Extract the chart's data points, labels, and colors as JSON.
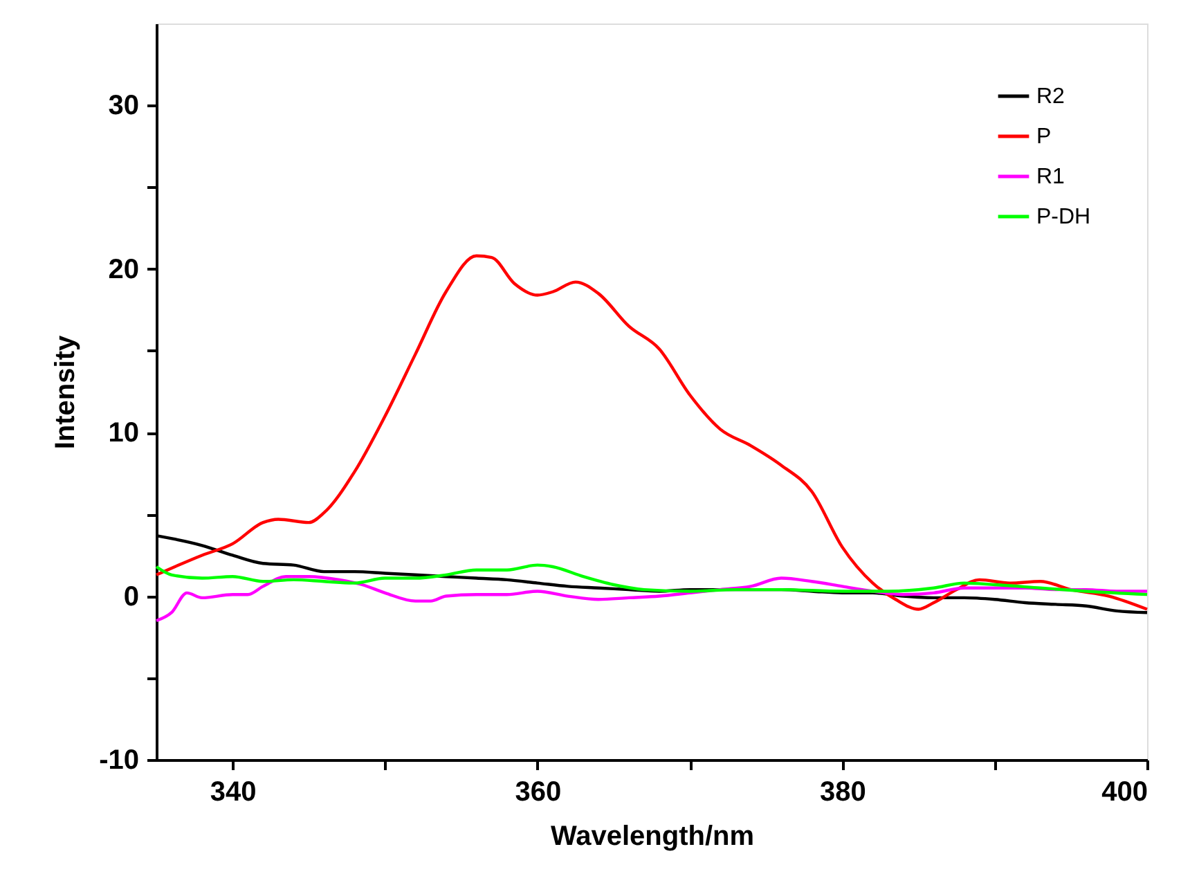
{
  "chart_data": {
    "type": "line",
    "xlabel": "Wavelength/nm",
    "ylabel": "Intensity",
    "xlim": [
      335,
      400
    ],
    "ylim": [
      -10,
      35
    ],
    "xticks": [
      340,
      {
        "value": 350,
        "label": null
      },
      360,
      {
        "value": 370,
        "label": null
      },
      380,
      {
        "value": 390,
        "label": null
      },
      400
    ],
    "yticks": [
      -10,
      {
        "value": -5,
        "label": null
      },
      0,
      {
        "value": 5,
        "label": null
      },
      10,
      {
        "value": 15,
        "label": null
      },
      20,
      {
        "value": 25,
        "label": null
      },
      30
    ],
    "grid": false,
    "legend": "top right",
    "line_style": "solid",
    "marker": "none",
    "series": [
      {
        "name": "R2",
        "color": "#000000",
        "x": [
          335,
          338,
          340,
          342,
          344,
          346,
          348,
          350,
          352,
          354,
          356,
          358,
          360,
          362,
          364,
          366,
          368,
          370,
          372,
          374,
          376,
          378,
          380,
          382,
          384,
          386,
          388,
          390,
          392,
          394,
          396,
          398,
          400
        ],
        "values": [
          3.7,
          3.1,
          2.5,
          2.0,
          1.9,
          1.5,
          1.5,
          1.4,
          1.3,
          1.2,
          1.1,
          1.0,
          0.8,
          0.6,
          0.5,
          0.4,
          0.3,
          0.4,
          0.4,
          0.4,
          0.4,
          0.3,
          0.2,
          0.2,
          0.0,
          -0.1,
          -0.1,
          -0.2,
          -0.4,
          -0.5,
          -0.6,
          -0.9,
          -1.0
        ]
      },
      {
        "name": "P",
        "color": "#ff0000",
        "x": [
          335,
          338,
          340,
          342,
          343,
          345,
          346,
          348,
          350,
          352,
          354,
          356,
          357,
          358.5,
          360,
          361,
          362.5,
          364,
          366,
          368,
          370,
          372,
          374,
          376,
          378,
          380,
          382,
          383.5,
          385,
          386,
          387.5,
          389,
          391,
          393,
          395,
          397.5,
          400
        ],
        "values": [
          1.3,
          2.5,
          3.2,
          4.5,
          4.7,
          4.5,
          5.1,
          7.6,
          11,
          14.8,
          18.6,
          20.8,
          20.7,
          19.1,
          18.4,
          18.6,
          19.2,
          18.5,
          16.5,
          15.1,
          12.3,
          10.2,
          9.2,
          8.0,
          6.4,
          3.0,
          0.8,
          -0.2,
          -0.8,
          -0.4,
          0.4,
          1.0,
          0.8,
          0.9,
          0.4,
          0.0,
          -0.8
        ]
      },
      {
        "name": "R1",
        "color": "#ff00ff",
        "x": [
          335,
          336,
          337,
          338,
          340,
          341,
          342,
          343.5,
          345,
          347,
          348.5,
          350,
          352,
          353,
          354,
          356,
          358,
          360,
          362,
          364,
          366,
          368,
          370,
          372,
          374,
          376,
          378,
          380,
          382,
          384,
          386,
          388,
          390,
          392,
          394,
          396,
          398,
          400
        ],
        "values": [
          -1.5,
          -1.0,
          0.2,
          -0.1,
          0.1,
          0.1,
          0.6,
          1.2,
          1.2,
          1.0,
          0.7,
          0.2,
          -0.3,
          -0.3,
          0.0,
          0.1,
          0.1,
          0.3,
          0.0,
          -0.2,
          -0.1,
          0.0,
          0.2,
          0.4,
          0.6,
          1.1,
          0.9,
          0.6,
          0.3,
          0.1,
          0.2,
          0.5,
          0.5,
          0.5,
          0.4,
          0.4,
          0.3,
          0.3
        ]
      },
      {
        "name": "P-DH",
        "color": "#00ff00",
        "x": [
          335,
          336,
          338,
          340,
          342,
          344,
          346,
          348,
          350,
          352,
          354,
          356,
          358,
          360,
          361,
          363,
          365,
          367,
          370,
          373,
          376,
          380,
          383,
          386,
          388,
          390,
          393,
          396,
          400
        ],
        "values": [
          1.8,
          1.3,
          1.1,
          1.2,
          0.9,
          1.0,
          0.9,
          0.8,
          1.1,
          1.1,
          1.3,
          1.6,
          1.6,
          1.9,
          1.8,
          1.2,
          0.7,
          0.4,
          0.3,
          0.4,
          0.4,
          0.3,
          0.3,
          0.5,
          0.8,
          0.7,
          0.5,
          0.3,
          0.1
        ]
      }
    ]
  }
}
